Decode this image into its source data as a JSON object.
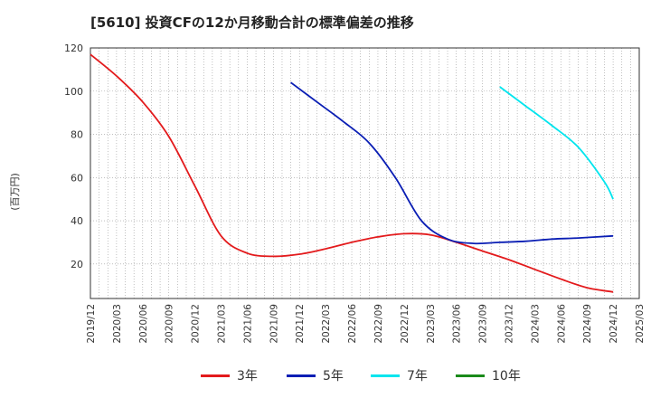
{
  "title": "[5610]  投資CFの12か月移動合計の標準偏差の推移",
  "y_unit_label": "(百万円)",
  "chart_data": {
    "type": "line",
    "title": "[5610]  投資CFの12か月移動合計の標準偏差の推移",
    "xlabel": "",
    "ylabel": "(百万円)",
    "ylim": [
      4,
      120
    ],
    "yticks": [
      20,
      40,
      60,
      80,
      100,
      120
    ],
    "x_ticks": [
      "2019/12",
      "2020/03",
      "2020/06",
      "2020/09",
      "2020/12",
      "2021/03",
      "2021/06",
      "2021/09",
      "2021/12",
      "2022/03",
      "2022/06",
      "2022/09",
      "2022/12",
      "2023/03",
      "2023/06",
      "2023/09",
      "2023/12",
      "2024/03",
      "2024/06",
      "2024/09",
      "2024/12",
      "2025/03"
    ],
    "grid": true,
    "legend_position": "bottom",
    "series": [
      {
        "name": "3年",
        "color": "#e31a1c",
        "points": [
          [
            "2019/12",
            117
          ],
          [
            "2020/03",
            107
          ],
          [
            "2020/06",
            95
          ],
          [
            "2020/09",
            79
          ],
          [
            "2020/12",
            56
          ],
          [
            "2021/03",
            33
          ],
          [
            "2021/06",
            25
          ],
          [
            "2021/09",
            23.5
          ],
          [
            "2021/12",
            24.5
          ],
          [
            "2022/03",
            27
          ],
          [
            "2022/06",
            30
          ],
          [
            "2022/09",
            32.5
          ],
          [
            "2022/12",
            34
          ],
          [
            "2023/03",
            33.5
          ],
          [
            "2023/06",
            30
          ],
          [
            "2023/09",
            26
          ],
          [
            "2023/12",
            22
          ],
          [
            "2024/03",
            17.5
          ],
          [
            "2024/06",
            13
          ],
          [
            "2024/09",
            9
          ],
          [
            "2024/12",
            7
          ]
        ]
      },
      {
        "name": "5年",
        "color": "#0a1eb4",
        "points": [
          [
            "2021/11",
            104
          ],
          [
            "2022/02",
            95
          ],
          [
            "2022/05",
            86
          ],
          [
            "2022/08",
            76
          ],
          [
            "2022/11",
            60
          ],
          [
            "2023/02",
            40
          ],
          [
            "2023/05",
            31.5
          ],
          [
            "2023/08",
            29.5
          ],
          [
            "2023/11",
            30
          ],
          [
            "2024/02",
            30.5
          ],
          [
            "2024/05",
            31.5
          ],
          [
            "2024/08",
            32
          ],
          [
            "2024/12",
            33
          ]
        ]
      },
      {
        "name": "7年",
        "color": "#00e5ee",
        "points": [
          [
            "2023/11",
            102
          ],
          [
            "2024/02",
            93
          ],
          [
            "2024/05",
            84
          ],
          [
            "2024/08",
            74
          ],
          [
            "2024/11",
            58
          ],
          [
            "2024/12",
            50
          ]
        ]
      },
      {
        "name": "10年",
        "color": "#1a8a1a",
        "points": []
      }
    ]
  }
}
